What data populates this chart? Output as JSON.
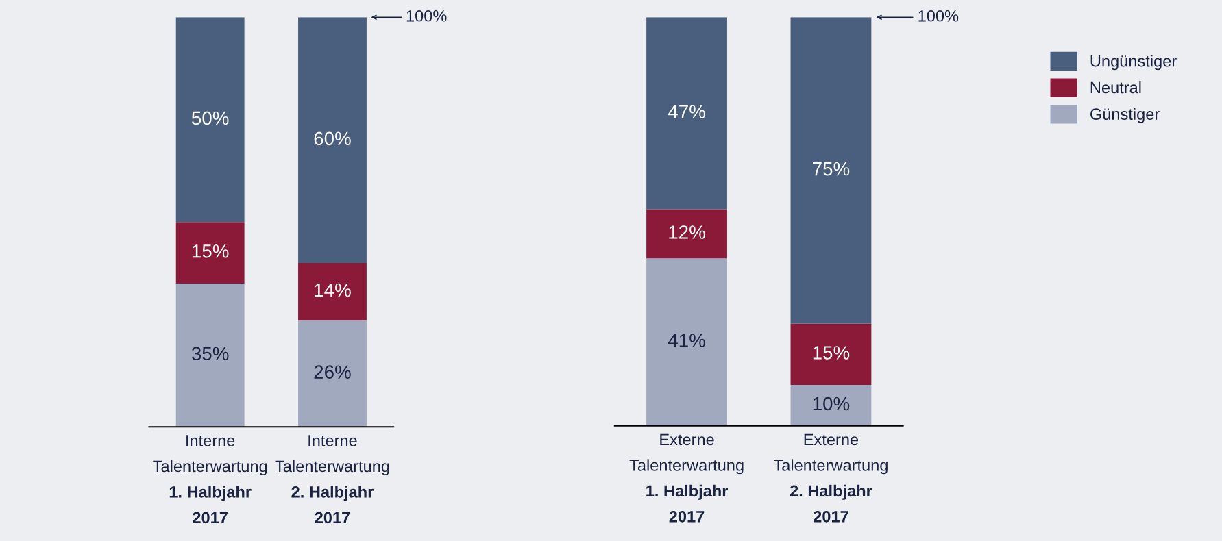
{
  "chart_data": [
    {
      "type": "bar",
      "stacked": true,
      "categories": [
        "Interne\nTalenterwartung\n1. Halbjahr\n2017",
        "Interne\nTalenterwartung\n2. Halbjahr\n2017"
      ],
      "series": [
        {
          "name": "Günstiger",
          "color": "#a0a9bd",
          "values": [
            35,
            26
          ],
          "value_labels": [
            "35%",
            "26%"
          ]
        },
        {
          "name": "Neutral",
          "color": "#8b1a38",
          "values": [
            15,
            14
          ],
          "value_labels": [
            "15%",
            "14%"
          ]
        },
        {
          "name": "Ungünstiger",
          "color": "#4a5e7e",
          "values": [
            50,
            60
          ],
          "value_labels": [
            "50%",
            "60%"
          ]
        }
      ],
      "tick_labels": "x",
      "legend": "right",
      "annotations": [
        "100%"
      ]
    },
    {
      "type": "bar",
      "stacked": true,
      "categories": [
        "Externe\nTalenterwartung\n1. Halbjahr\n2017",
        "Externe\nTalenterwartung\n2. Halbjahr\n2017"
      ],
      "series": [
        {
          "color": "#a0a9bd",
          "values": [
            41,
            10
          ],
          "value_labels": [
            "41%",
            "10%"
          ]
        },
        {
          "color": "#8b1a38",
          "values": [
            12,
            15
          ],
          "value_labels": [
            "12%",
            "15%"
          ]
        },
        {
          "color": "#4a5e7e",
          "values": [
            47,
            75
          ],
          "value_labels": [
            "47%",
            "75%"
          ]
        }
      ],
      "tick_labels": "x",
      "annotations": [
        "100%"
      ]
    }
  ]
}
